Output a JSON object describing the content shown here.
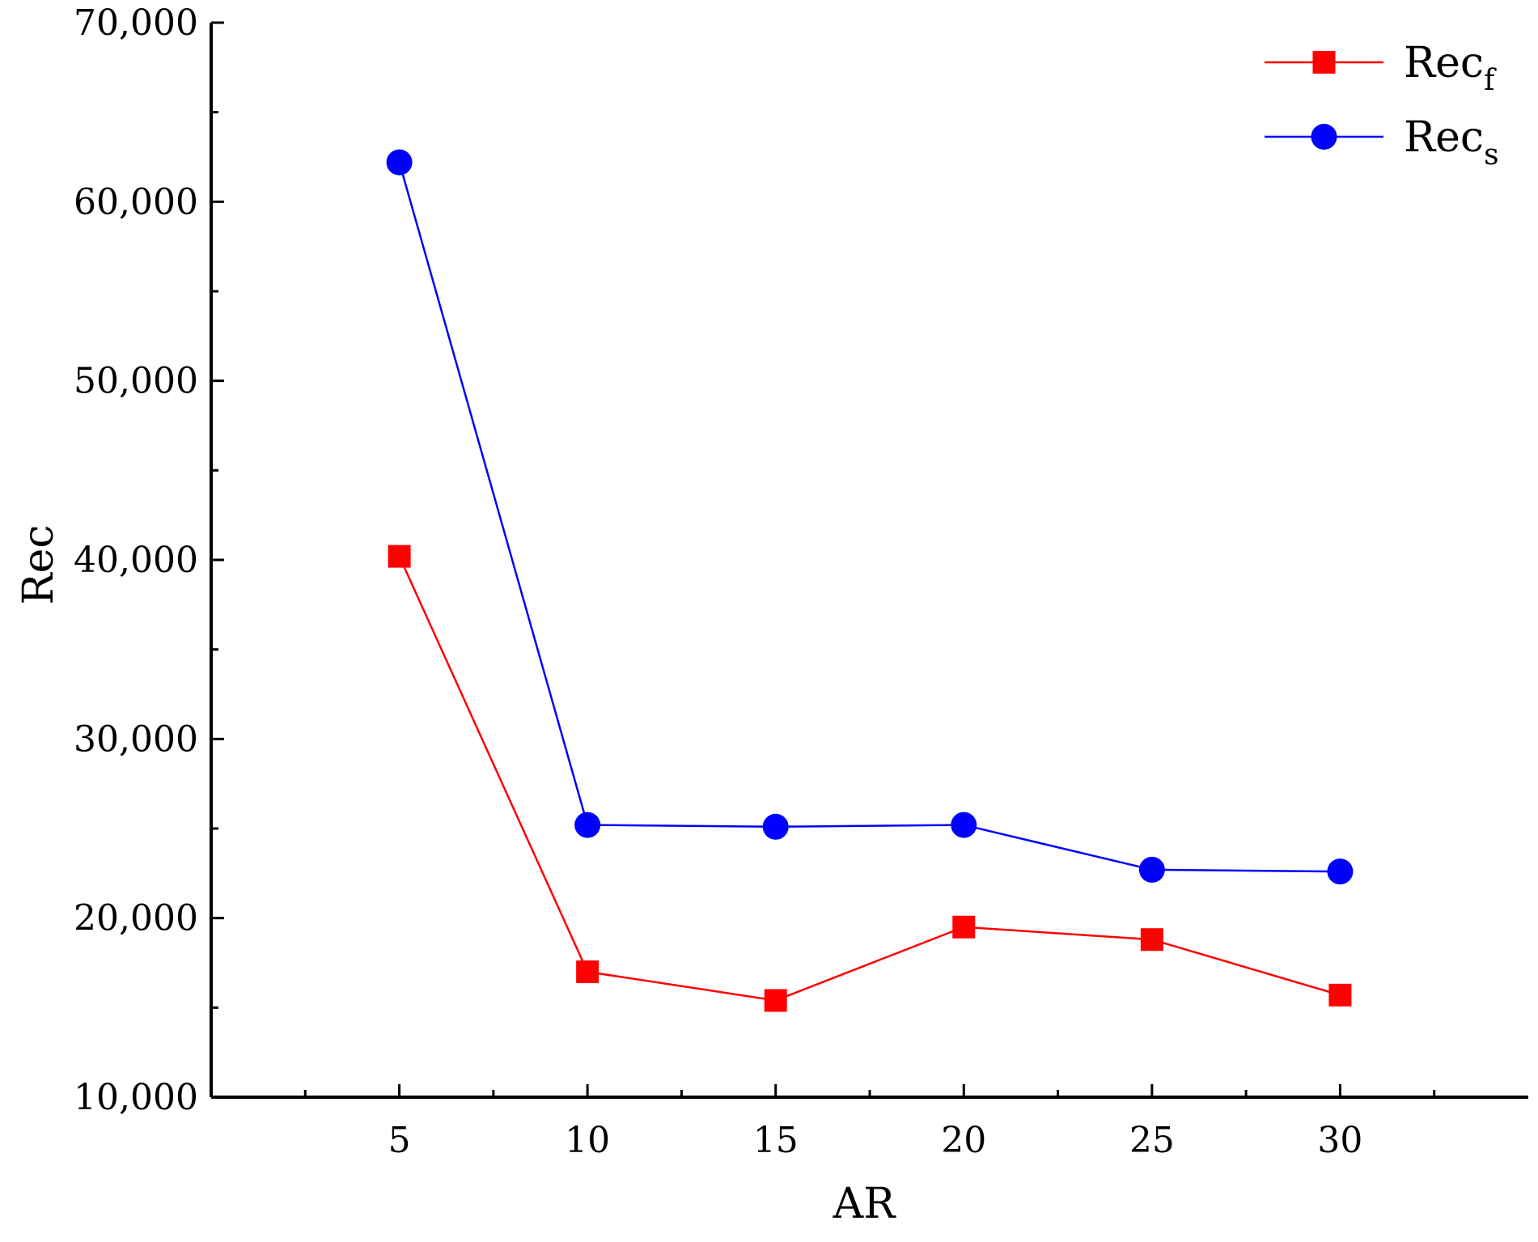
{
  "chart_data": {
    "type": "line",
    "xlabel": "AR",
    "ylabel": "Rec",
    "x": [
      5,
      10,
      15,
      20,
      25,
      30
    ],
    "xlim": [
      0,
      35
    ],
    "ylim": [
      10000,
      70000
    ],
    "x_ticks": [
      5,
      10,
      15,
      20,
      25,
      30
    ],
    "x_tick_labels": [
      "5",
      "10",
      "15",
      "20",
      "25",
      "30"
    ],
    "y_ticks": [
      10000,
      20000,
      30000,
      40000,
      50000,
      60000,
      70000
    ],
    "y_tick_labels": [
      "10,000",
      "20,000",
      "30,000",
      "40,000",
      "50,000",
      "60,000",
      "70,000"
    ],
    "grid": false,
    "legend_position": "top-right",
    "series": [
      {
        "name": "Rec_f",
        "legend_base": "Rec",
        "legend_sub": "f",
        "color": "#ff0000",
        "marker": "square",
        "values": [
          40200,
          17000,
          15400,
          19500,
          18800,
          15700
        ]
      },
      {
        "name": "Rec_s",
        "legend_base": "Rec",
        "legend_sub": "s",
        "color": "#0000ff",
        "marker": "circle",
        "values": [
          62200,
          25200,
          25100,
          25200,
          22700,
          22600
        ]
      }
    ]
  }
}
